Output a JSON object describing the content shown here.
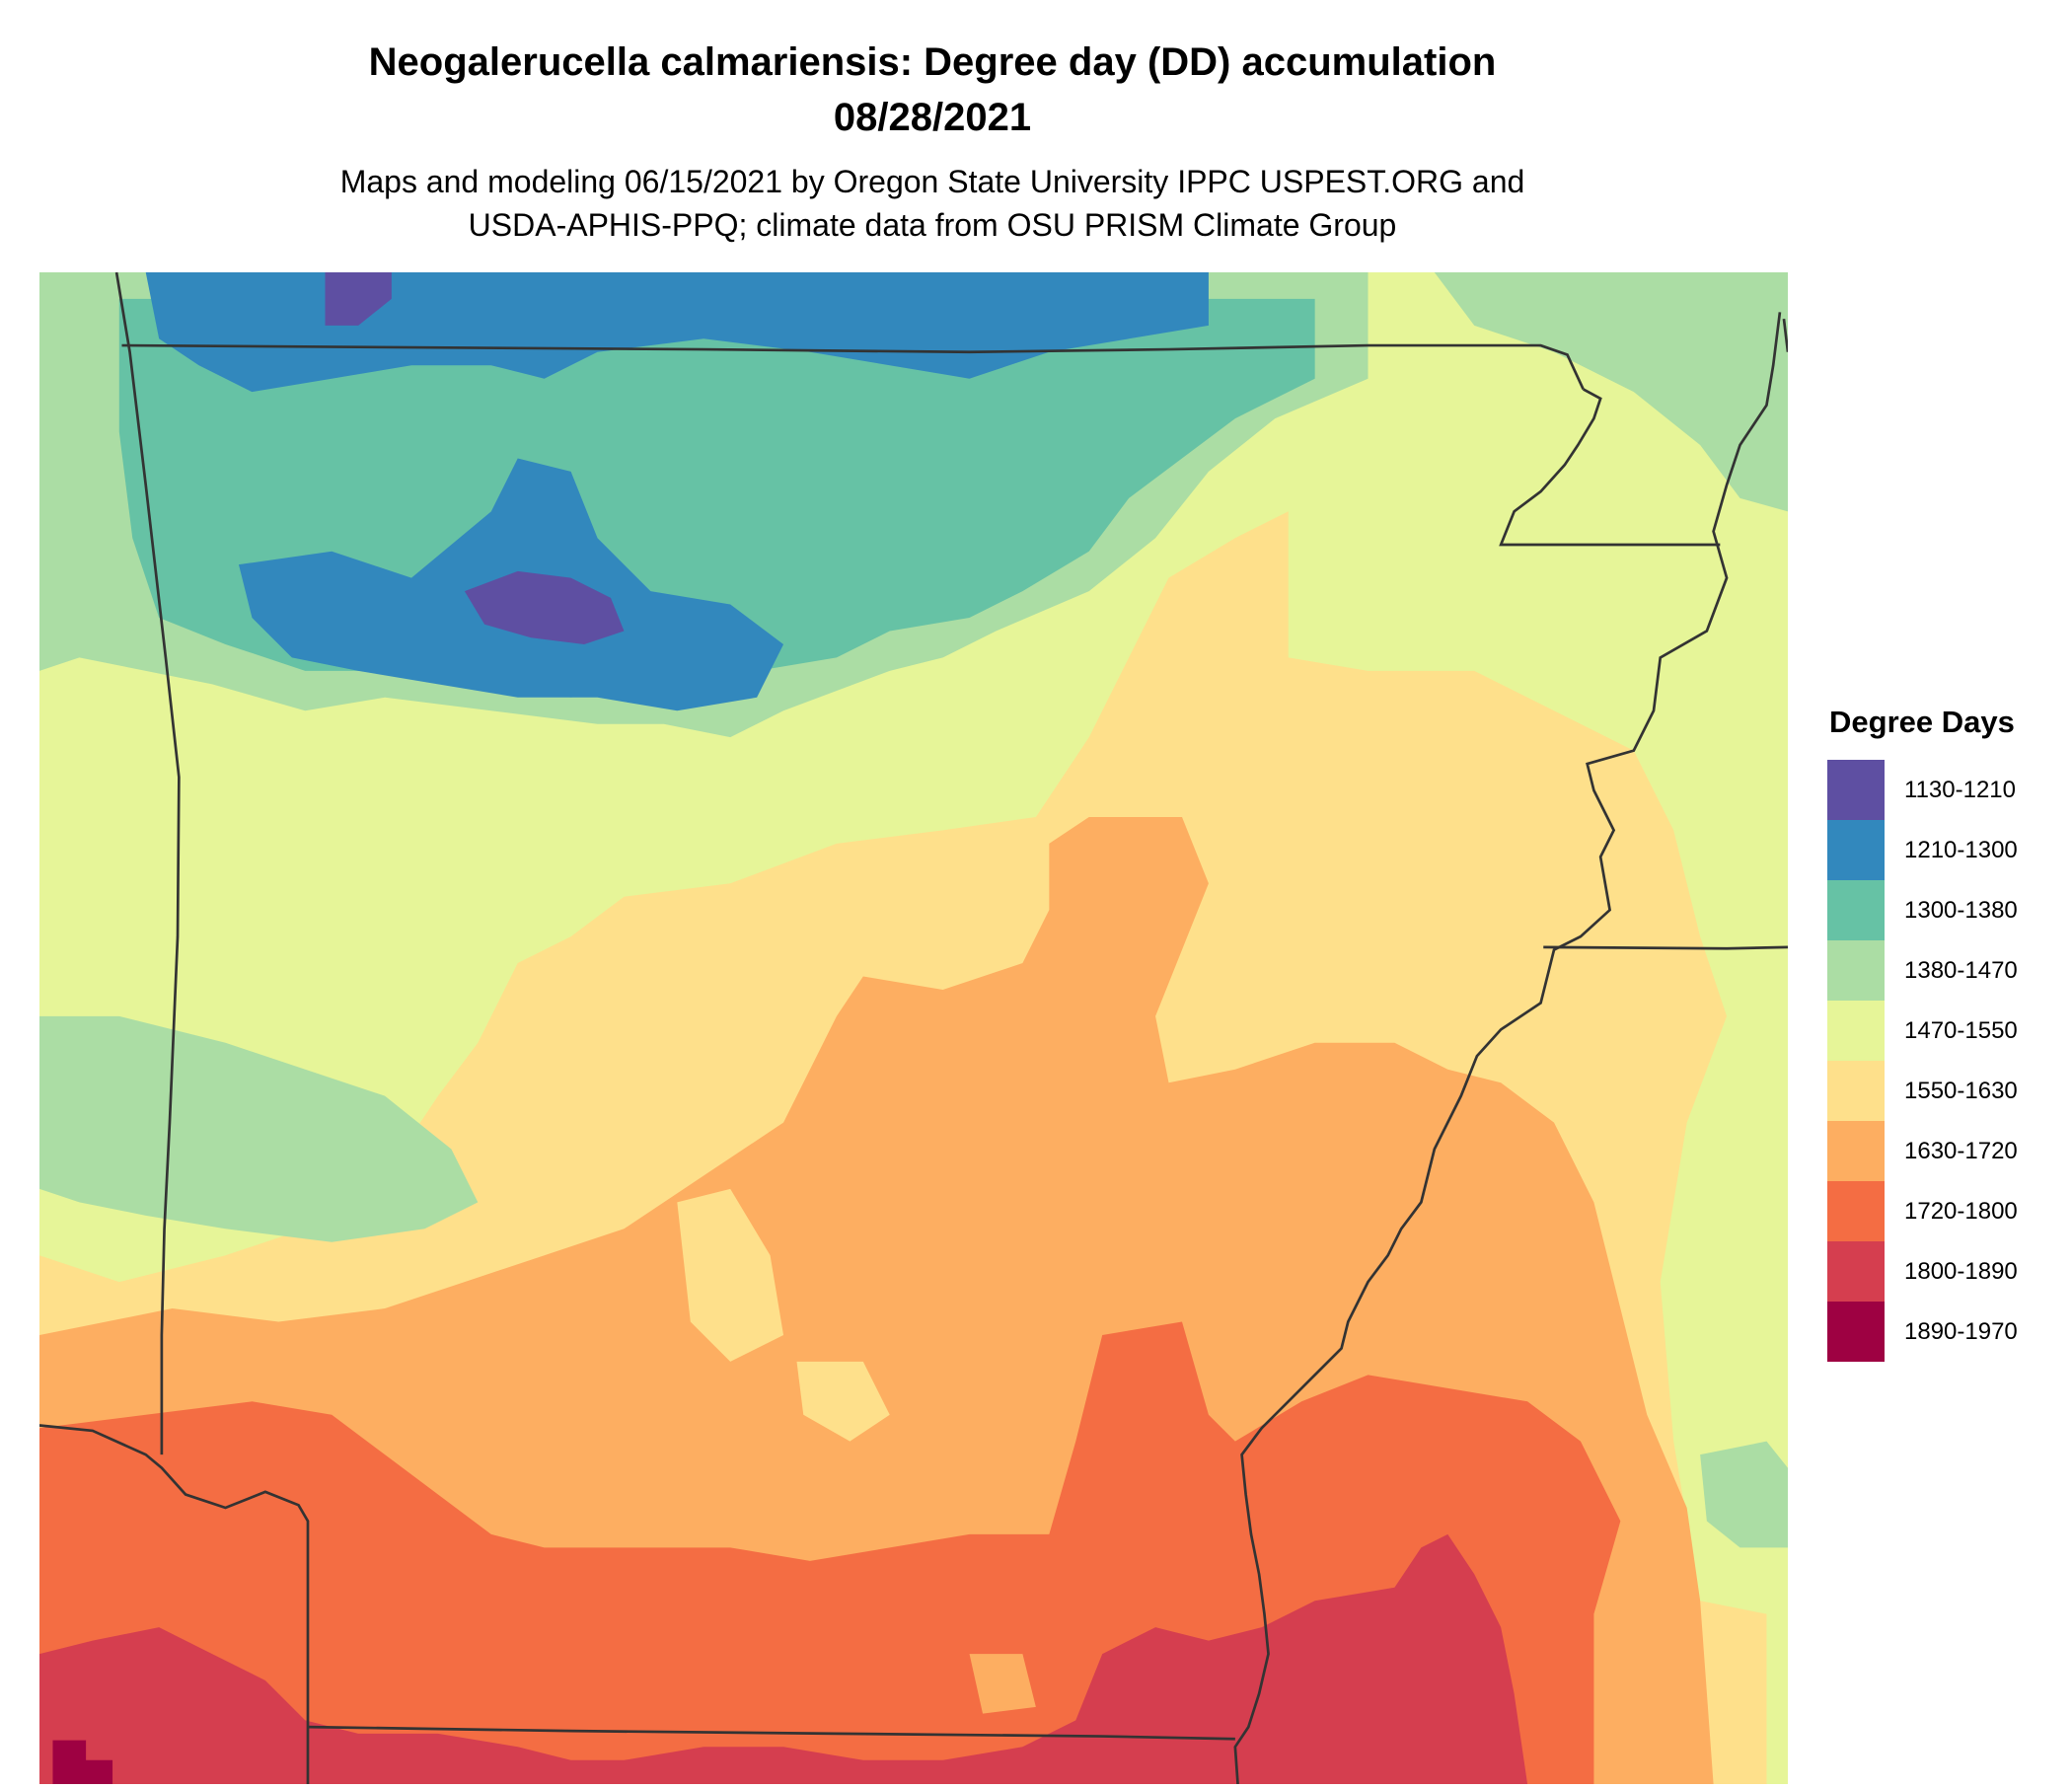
{
  "title": {
    "line1": "Neogalerucella calmariensis: Degree day (DD) accumulation",
    "line2": "08/28/2021"
  },
  "subtitle": {
    "line1": "Maps and modeling 06/15/2021 by Oregon State University IPPC USPEST.ORG and",
    "line2": "USDA-APHIS-PPQ; climate data from OSU PRISM Climate Group"
  },
  "legend": {
    "title": "Degree Days",
    "items": [
      {
        "label": "1130-1210",
        "color": "#5e4fa2"
      },
      {
        "label": "1210-1300",
        "color": "#3288bd"
      },
      {
        "label": "1300-1380",
        "color": "#66c2a5"
      },
      {
        "label": "1380-1470",
        "color": "#abdda4"
      },
      {
        "label": "1470-1550",
        "color": "#e6f598"
      },
      {
        "label": "1550-1630",
        "color": "#fee08b"
      },
      {
        "label": "1630-1720",
        "color": "#fdae61"
      },
      {
        "label": "1720-1800",
        "color": "#f46d43"
      },
      {
        "label": "1800-1890",
        "color": "#d53e4f"
      },
      {
        "label": "1890-1970",
        "color": "#9e0142"
      }
    ]
  },
  "map": {
    "variable": "Degree day (DD) accumulation",
    "region_note": "Arkansas and surrounding state borders",
    "border_color": "#333333"
  }
}
